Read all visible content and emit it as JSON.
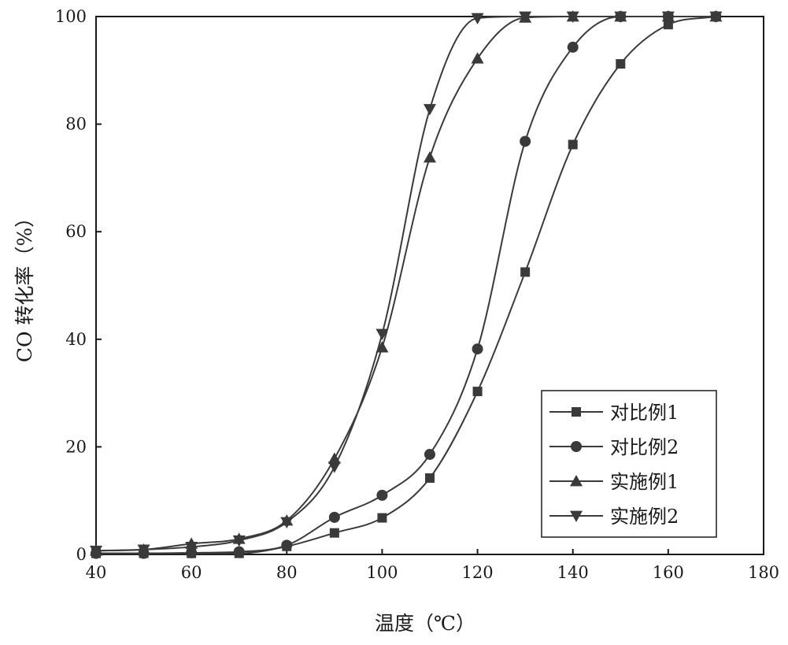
{
  "chart_data": {
    "type": "line",
    "xlabel": "温度（℃）",
    "ylabel": "CO 转化率（%）",
    "xlim": [
      40,
      180
    ],
    "ylim": [
      0,
      100
    ],
    "xticks": [
      40,
      60,
      80,
      100,
      120,
      140,
      160,
      180
    ],
    "yticks": [
      0,
      20,
      40,
      60,
      80,
      100
    ],
    "grid": false,
    "legend_position": "bottom-right",
    "line_color": "#3a3a3a",
    "series": [
      {
        "name": "对比例1",
        "marker": "square",
        "x": [
          40,
          50,
          60,
          70,
          80,
          90,
          100,
          110,
          120,
          130,
          140,
          150,
          160,
          170
        ],
        "y": [
          0.2,
          0.2,
          0.2,
          0.2,
          1.5,
          4.0,
          6.8,
          14.2,
          30.3,
          52.5,
          76.2,
          91.2,
          98.5,
          100
        ]
      },
      {
        "name": "对比例2",
        "marker": "circle",
        "x": [
          40,
          50,
          60,
          70,
          80,
          90,
          100,
          110,
          120,
          130,
          140,
          150,
          160,
          170
        ],
        "y": [
          0.2,
          0.2,
          0.3,
          0.5,
          1.7,
          6.9,
          11.0,
          18.6,
          38.2,
          76.8,
          94.3,
          100,
          100,
          100
        ]
      },
      {
        "name": "实施例1",
        "marker": "triangle-up",
        "x": [
          40,
          50,
          60,
          70,
          80,
          90,
          100,
          110,
          120,
          130,
          140,
          150,
          160,
          170
        ],
        "y": [
          0.7,
          0.9,
          2.0,
          2.9,
          6.3,
          17.8,
          38.5,
          73.8,
          92.2,
          99.8,
          100,
          100,
          100,
          100
        ]
      },
      {
        "name": "实施例2",
        "marker": "triangle-down",
        "x": [
          40,
          50,
          60,
          70,
          80,
          90,
          100,
          110,
          120,
          130,
          140,
          150,
          160,
          170
        ],
        "y": [
          0.7,
          0.9,
          1.4,
          2.6,
          6.0,
          16.3,
          41.0,
          82.8,
          99.7,
          100,
          100,
          100,
          100,
          100
        ]
      }
    ]
  }
}
